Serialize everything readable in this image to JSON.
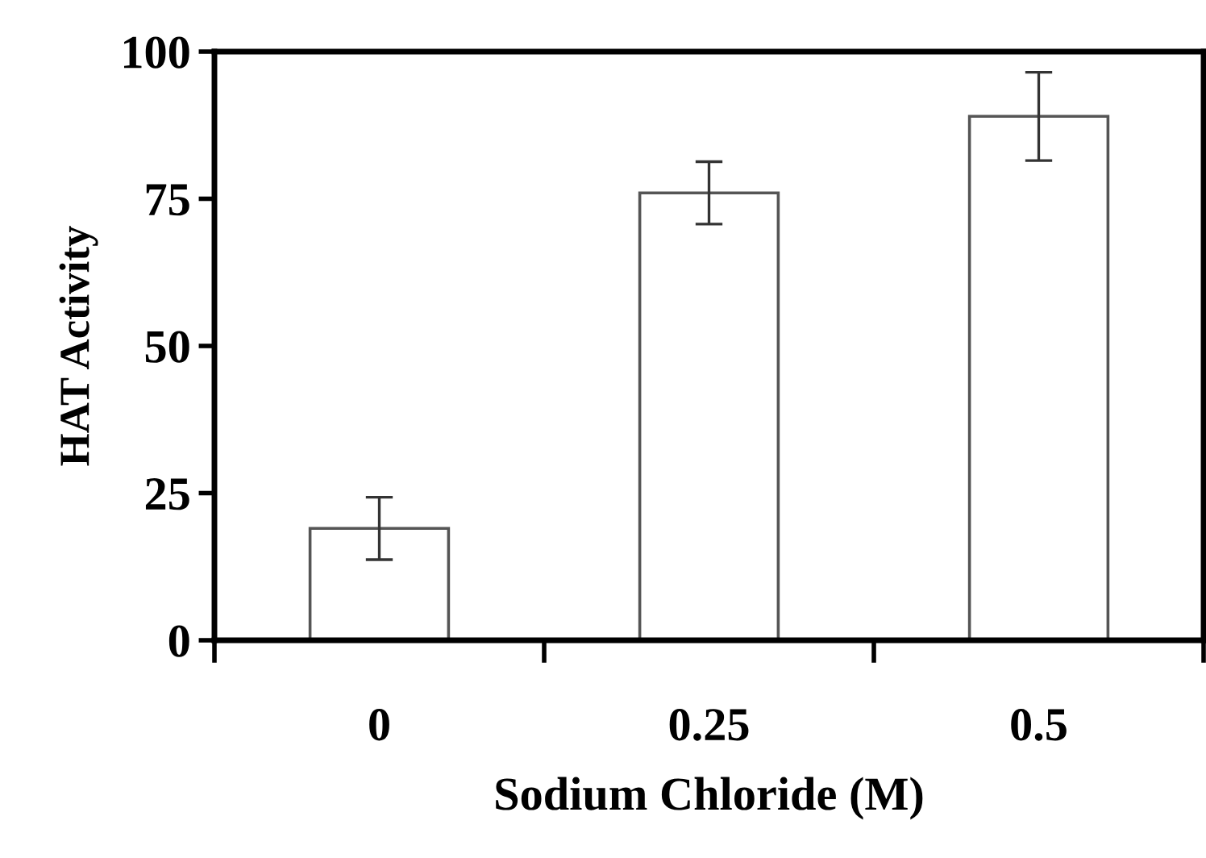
{
  "chart_data": {
    "type": "bar",
    "xlabel": "Sodium Chloride (M)",
    "ylabel": "HAT Activity",
    "categories": [
      "0",
      "0.25",
      "0.5"
    ],
    "series": [
      {
        "color": "#ffffff",
        "values": [
          19,
          76,
          89
        ],
        "errors": [
          5.3,
          5.3,
          7.5
        ]
      }
    ],
    "ylim": [
      0,
      100
    ],
    "yticks": [
      0,
      25,
      50,
      75,
      100
    ],
    "grid": false,
    "legend": false
  }
}
